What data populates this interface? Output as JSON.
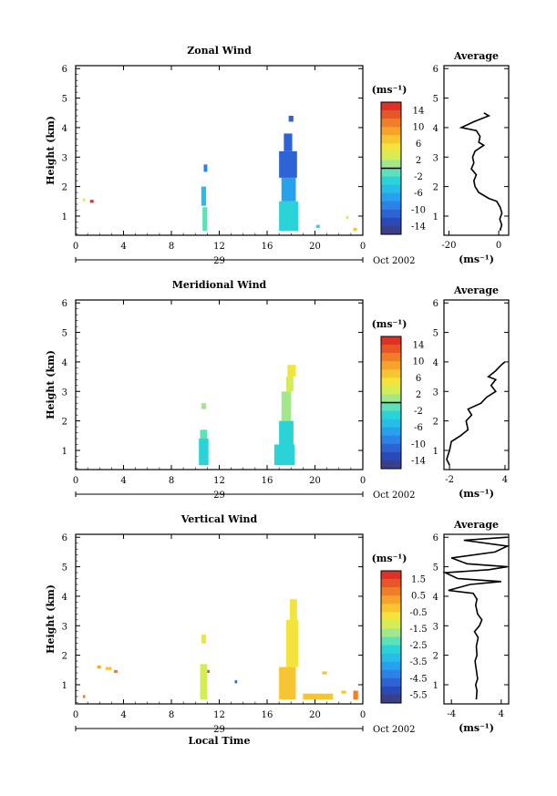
{
  "chart_data": [
    {
      "type": "heatmap",
      "title": "Zonal Wind",
      "ylabel": "Height (km)",
      "units_label": "(ms⁻¹)",
      "yticks": [
        1,
        2,
        3,
        4,
        5,
        6
      ],
      "ylim": [
        0.35,
        6.1
      ],
      "xlim": [
        0,
        24
      ],
      "xticks": [
        "0",
        "4",
        "8",
        "12",
        "16",
        "20",
        "0"
      ],
      "date_label": "29",
      "month_label": "Oct 2002",
      "colorbar": {
        "ticks": [
          "14",
          "10",
          "6",
          "2",
          "-2",
          "-6",
          "-10",
          "-14"
        ],
        "range": [
          -16,
          16
        ],
        "zero_line": true
      },
      "patches": [
        {
          "x": [
            0.6,
            0.8
          ],
          "y": [
            1.5,
            1.6
          ],
          "value": 4
        },
        {
          "x": [
            1.2,
            1.5
          ],
          "y": [
            1.45,
            1.55
          ],
          "value": 14
        },
        {
          "x": [
            10.5,
            10.9
          ],
          "y": [
            1.35,
            2.0
          ],
          "value": -5
        },
        {
          "x": [
            10.6,
            11.0
          ],
          "y": [
            0.5,
            1.3
          ],
          "value": -2
        },
        {
          "x": [
            10.7,
            11.0
          ],
          "y": [
            2.5,
            2.75
          ],
          "value": -10
        },
        {
          "x": [
            17.0,
            18.5
          ],
          "y": [
            2.3,
            3.2
          ],
          "value": -11
        },
        {
          "x": [
            17.2,
            18.4
          ],
          "y": [
            1.5,
            2.3
          ],
          "value": -8
        },
        {
          "x": [
            17.0,
            18.6
          ],
          "y": [
            0.5,
            1.5
          ],
          "value": -3
        },
        {
          "x": [
            17.4,
            18.1
          ],
          "y": [
            3.2,
            3.8
          ],
          "value": -12
        },
        {
          "x": [
            17.8,
            18.2
          ],
          "y": [
            4.2,
            4.4
          ],
          "value": -12
        },
        {
          "x": [
            20.1,
            20.4
          ],
          "y": [
            0.6,
            0.7
          ],
          "value": -4
        },
        {
          "x": [
            22.6,
            22.8
          ],
          "y": [
            0.9,
            1.0
          ],
          "value": 4
        },
        {
          "x": [
            23.2,
            23.5
          ],
          "y": [
            0.5,
            0.6
          ],
          "value": 6
        }
      ],
      "average": {
        "title": "Average",
        "xlabel": "(ms⁻¹)",
        "xticks": [
          "-20",
          "0"
        ],
        "xlim": [
          -22,
          4
        ],
        "height": [
          0.5,
          0.7,
          0.9,
          1.1,
          1.3,
          1.5,
          1.6,
          1.8,
          2.0,
          2.2,
          2.4,
          2.6,
          2.8,
          3.0,
          3.2,
          3.4,
          3.5,
          3.7,
          3.9,
          4.0,
          4.2,
          4.4,
          4.5
        ],
        "values": [
          0.5,
          1.2,
          0.4,
          1.3,
          0.6,
          -0.8,
          -4.0,
          -8.0,
          -9.5,
          -10.0,
          -9.0,
          -11.0,
          -10.0,
          -10.5,
          -9.5,
          -6.0,
          -8.0,
          -7.5,
          -9.0,
          -15.0,
          -10.0,
          -4.0,
          -6.0
        ]
      }
    },
    {
      "type": "heatmap",
      "title": "Meridional Wind",
      "ylabel": "Height (km)",
      "units_label": "(ms⁻¹)",
      "yticks": [
        1,
        2,
        3,
        4,
        5,
        6
      ],
      "ylim": [
        0.35,
        6.1
      ],
      "xlim": [
        0,
        24
      ],
      "xticks": [
        "0",
        "4",
        "8",
        "12",
        "16",
        "20",
        "0"
      ],
      "date_label": "29",
      "month_label": "Oct 2002",
      "colorbar": {
        "ticks": [
          "14",
          "10",
          "6",
          "2",
          "-2",
          "-6",
          "-10",
          "-14"
        ],
        "range": [
          -16,
          16
        ],
        "zero_line": true
      },
      "patches": [
        {
          "x": [
            10.5,
            10.9
          ],
          "y": [
            2.4,
            2.6
          ],
          "value": 1
        },
        {
          "x": [
            10.4,
            11.0
          ],
          "y": [
            1.4,
            1.7
          ],
          "value": -2
        },
        {
          "x": [
            10.3,
            11.1
          ],
          "y": [
            0.5,
            1.4
          ],
          "value": -3
        },
        {
          "x": [
            17.2,
            18.0
          ],
          "y": [
            2.0,
            3.0
          ],
          "value": 1
        },
        {
          "x": [
            17.0,
            18.2
          ],
          "y": [
            1.2,
            2.0
          ],
          "value": -3
        },
        {
          "x": [
            16.6,
            18.3
          ],
          "y": [
            0.5,
            1.2
          ],
          "value": -4
        },
        {
          "x": [
            17.6,
            18.2
          ],
          "y": [
            3.0,
            3.5
          ],
          "value": 3
        },
        {
          "x": [
            17.7,
            18.4
          ],
          "y": [
            3.5,
            3.9
          ],
          "value": 4
        }
      ],
      "average": {
        "title": "Average",
        "xlabel": "(ms⁻¹)",
        "xticks": [
          "-2",
          "4"
        ],
        "xlim": [
          -2.6,
          4.4
        ],
        "height": [
          0.5,
          0.7,
          1.0,
          1.3,
          1.5,
          1.7,
          2.0,
          2.2,
          2.4,
          2.6,
          2.8,
          3.0,
          3.2,
          3.4,
          3.5,
          3.7,
          3.9,
          4.0
        ],
        "values": [
          -2.0,
          -2.3,
          -2.0,
          -1.8,
          -0.8,
          0.0,
          -0.2,
          0.4,
          0.0,
          1.4,
          2.0,
          3.0,
          2.5,
          3.0,
          2.2,
          3.0,
          3.6,
          4.0
        ]
      }
    },
    {
      "type": "heatmap",
      "title": "Vertical Wind",
      "ylabel": "Height (km)",
      "units_label": "(ms⁻¹)",
      "yticks": [
        1,
        2,
        3,
        4,
        5,
        6
      ],
      "ylim": [
        0.35,
        6.1
      ],
      "xlim": [
        0,
        24
      ],
      "xticks": [
        "0",
        "4",
        "8",
        "12",
        "16",
        "20",
        "0"
      ],
      "date_label": "29",
      "month_label": "Oct 2002",
      "xlabel": "Local Time",
      "colorbar": {
        "ticks": [
          "1.5",
          "0.5",
          "-0.5",
          "-1.5",
          "-2.5",
          "-3.5",
          "-4.5",
          "-5.5"
        ],
        "range": [
          -6.0,
          2.0
        ],
        "zero_line": false
      },
      "patches": [
        {
          "x": [
            0.6,
            0.8
          ],
          "y": [
            0.55,
            0.65
          ],
          "value": 0.8
        },
        {
          "x": [
            1.8,
            2.1
          ],
          "y": [
            1.55,
            1.65
          ],
          "value": 0.0
        },
        {
          "x": [
            2.5,
            3.0
          ],
          "y": [
            1.5,
            1.6
          ],
          "value": -0.3
        },
        {
          "x": [
            3.2,
            3.5
          ],
          "y": [
            1.4,
            1.5
          ],
          "value": 0.5
        },
        {
          "x": [
            10.5,
            10.9
          ],
          "y": [
            2.4,
            2.7
          ],
          "value": -0.6
        },
        {
          "x": [
            10.4,
            11.0
          ],
          "y": [
            0.5,
            1.7
          ],
          "value": -1.2
        },
        {
          "x": [
            11.0,
            11.2
          ],
          "y": [
            1.4,
            1.5
          ],
          "value": 1.4
        },
        {
          "x": [
            13.3,
            13.5
          ],
          "y": [
            1.05,
            1.15
          ],
          "value": -5.0
        },
        {
          "x": [
            17.0,
            18.4
          ],
          "y": [
            0.5,
            1.6
          ],
          "value": -0.3
        },
        {
          "x": [
            17.6,
            18.6
          ],
          "y": [
            1.6,
            3.2
          ],
          "value": -0.8
        },
        {
          "x": [
            17.9,
            18.5
          ],
          "y": [
            3.2,
            3.9
          ],
          "value": -0.6
        },
        {
          "x": [
            19.0,
            21.5
          ],
          "y": [
            0.5,
            0.7
          ],
          "value": -0.4
        },
        {
          "x": [
            20.6,
            21.0
          ],
          "y": [
            1.35,
            1.45
          ],
          "value": -0.4
        },
        {
          "x": [
            22.2,
            22.6
          ],
          "y": [
            0.7,
            0.8
          ],
          "value": -0.4
        },
        {
          "x": [
            23.2,
            23.6
          ],
          "y": [
            0.5,
            0.8
          ],
          "value": 0.6
        }
      ],
      "average": {
        "title": "Average",
        "xlabel": "(ms⁻¹)",
        "xticks": [
          "-4",
          "4"
        ],
        "xlim": [
          -5.2,
          5.2
        ],
        "height": [
          0.5,
          0.8,
          1.0,
          1.2,
          1.5,
          1.8,
          2.0,
          2.3,
          2.6,
          2.8,
          3.0,
          3.2,
          3.4,
          3.7,
          3.9,
          4.1,
          4.2,
          4.4,
          4.5,
          4.6,
          4.8,
          4.9,
          5.0,
          5.1,
          5.3,
          5.5,
          5.7,
          5.9,
          6.0
        ],
        "values": [
          0.0,
          0.1,
          -0.1,
          0.2,
          0.0,
          -0.2,
          0.1,
          0.0,
          0.3,
          -0.3,
          0.5,
          0.9,
          0.2,
          -0.1,
          0.1,
          -0.5,
          -4.5,
          -1.0,
          4.0,
          -3.0,
          -5.0,
          2.0,
          5.0,
          -1.5,
          -4.0,
          3.0,
          5.0,
          -2.0,
          5.0
        ]
      }
    }
  ]
}
